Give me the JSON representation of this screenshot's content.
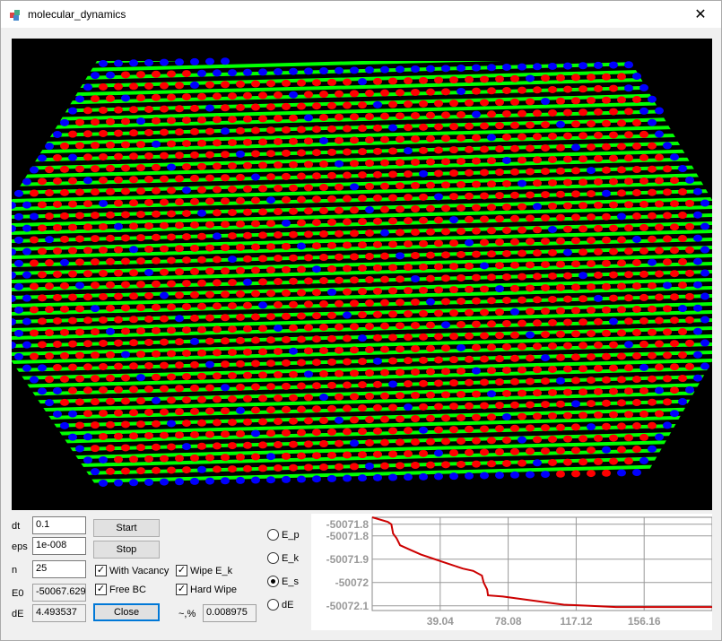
{
  "window": {
    "title": "molecular_dynamics",
    "close_label": "✕"
  },
  "controls": {
    "dt_label": "dt",
    "dt_value": "0.1",
    "eps_label": "eps",
    "eps_value": "1e-008",
    "n_label": "n",
    "n_value": "25",
    "e0_label": "E0",
    "e0_value": "-50067.629",
    "de_label": "dE",
    "de_value": "4.493537",
    "start_label": "Start",
    "stop_label": "Stop",
    "close_label": "Close",
    "with_vacancy_label": "With Vacancy",
    "with_vacancy_checked": true,
    "free_bc_label": "Free BC",
    "free_bc_checked": true,
    "wipe_ek_label": "Wipe E_k",
    "wipe_ek_checked": true,
    "hard_wipe_label": "Hard Wipe",
    "hard_wipe_checked": true,
    "pct_label": "~,%",
    "pct_value": "0.008975"
  },
  "radios": [
    {
      "label": "E_p",
      "selected": false
    },
    {
      "label": "E_k",
      "selected": false
    },
    {
      "label": "E_s",
      "selected": true
    },
    {
      "label": "dE",
      "selected": false
    }
  ],
  "chart_data": {
    "type": "line",
    "y_ticks": [
      "-50071.8",
      "-50071.8",
      "-50071.9",
      "-50072",
      "-50072.1"
    ],
    "y_tick_values": [
      -50071.75,
      -50071.8,
      -50071.9,
      -50072.0,
      -50072.1
    ],
    "x_ticks": [
      "39.04",
      "78.08",
      "117.12",
      "156.16"
    ],
    "x_tick_values": [
      39.04,
      78.08,
      117.12,
      156.16
    ],
    "xlim": [
      0,
      195.2
    ],
    "ylim": [
      -50072.12,
      -50071.72
    ],
    "series": [
      {
        "color": "#cc0000",
        "x": [
          0,
          9,
          11,
          12,
          14,
          16,
          22,
          28,
          34,
          40,
          46,
          52,
          58,
          63,
          64,
          66,
          66.5,
          75,
          85,
          95,
          105,
          110,
          125,
          140,
          160,
          180,
          195.2
        ],
        "y": [
          -50071.72,
          -50071.74,
          -50071.75,
          -50071.79,
          -50071.81,
          -50071.84,
          -50071.86,
          -50071.88,
          -50071.895,
          -50071.91,
          -50071.925,
          -50071.94,
          -50071.95,
          -50071.97,
          -50072.0,
          -50072.03,
          -50072.055,
          -50072.06,
          -50072.07,
          -50072.08,
          -50072.09,
          -50072.095,
          -50072.1,
          -50072.105,
          -50072.105,
          -50072.105,
          -50072.105
        ]
      }
    ],
    "grid": true
  },
  "colors": {
    "atom_a": "#ff0000",
    "atom_b": "#0000ff",
    "bond": "#00ff00",
    "background": "#000000"
  }
}
